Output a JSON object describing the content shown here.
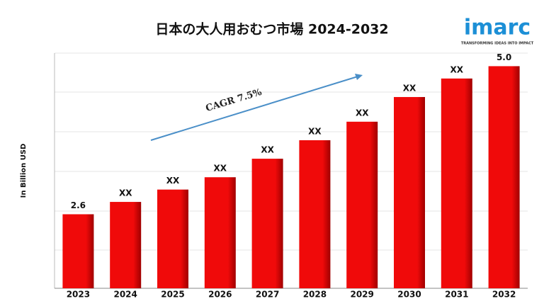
{
  "chart_data": {
    "type": "bar",
    "title": "日本の大人用おむつ市場 2024-2032",
    "y_label": "In Billion USD",
    "annotation": "CAGR 7.5%",
    "logo": "imarc",
    "tagline": "TRANSFORMING IDEAS INTO IMPACT",
    "categories": [
      "2023",
      "2024",
      "2025",
      "2026",
      "2027",
      "2028",
      "2029",
      "2030",
      "2031",
      "2032"
    ],
    "values": [
      2.6,
      2.8,
      3.0,
      3.2,
      3.5,
      3.8,
      4.1,
      4.5,
      4.8,
      5.0
    ],
    "value_labels": [
      "2.6",
      "XX",
      "XX",
      "XX",
      "XX",
      "XX",
      "XX",
      "XX",
      "XX",
      "5.0"
    ],
    "color": "#f00a0a",
    "ylim": [
      1.4,
      5.2
    ]
  }
}
